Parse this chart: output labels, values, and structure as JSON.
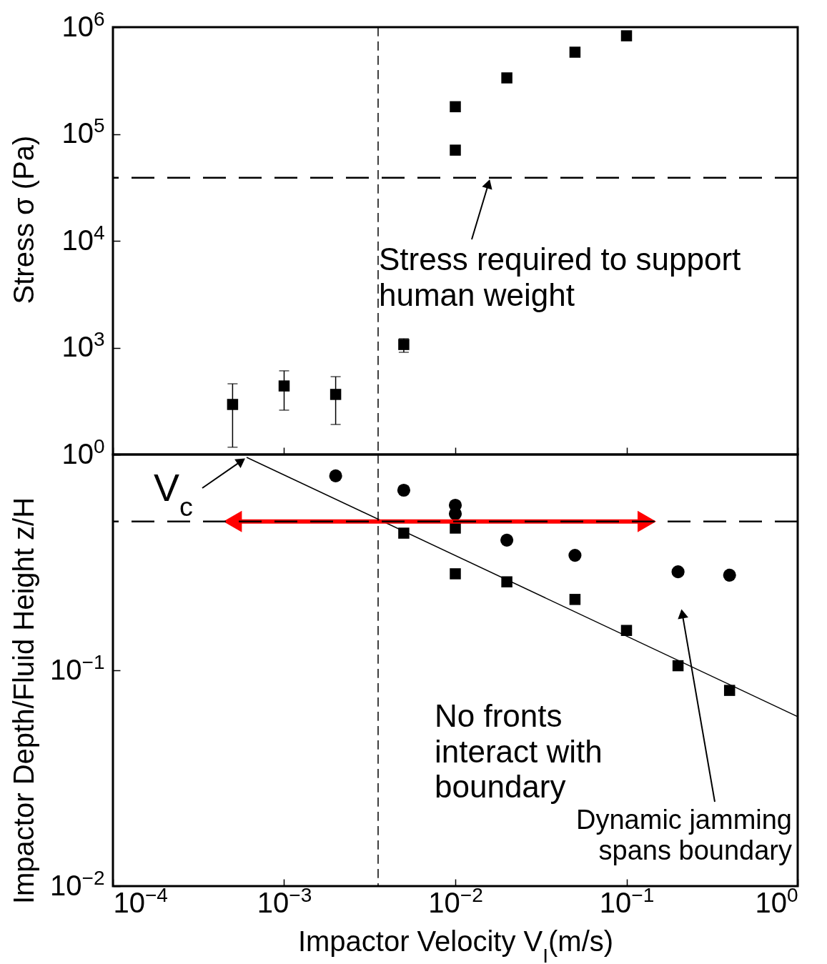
{
  "chart_data": [
    {
      "type": "scatter",
      "ylabel": "Stress σ (Pa)",
      "log": "xy",
      "xlim": [
        0.0001,
        1
      ],
      "ylim": [
        100,
        1000000
      ],
      "tick_labels": "y",
      "marker": "square",
      "grid": false,
      "xticks": [
        {
          "value": 0.0001,
          "label": null
        },
        {
          "value": 0.001,
          "label": null
        },
        {
          "value": 0.01,
          "label": null
        },
        {
          "value": 0.1,
          "label": null
        },
        {
          "value": 1,
          "label": null
        }
      ],
      "yticks": [
        {
          "value": 100,
          "label": null
        },
        {
          "value": 1000,
          "label": "10$^{3}$"
        },
        {
          "value": 10000,
          "label": "10$^{4}$"
        },
        {
          "value": 100000,
          "label": "10$^{5}$"
        },
        {
          "value": 1000000,
          "label": "10$^{6}$"
        }
      ],
      "series": [
        {
          "color": "#000000",
          "x": [
            0.0005,
            0.001,
            0.002,
            0.005,
            0.01,
            0.01,
            0.02,
            0.05,
            0.1
          ],
          "values": [
            294,
            438,
            365,
            1070,
            180000,
            70600,
            335000,
            583000,
            830000
          ],
          "errors": [
            [
              117,
              459
            ],
            [
              260,
              607
            ],
            [
              191,
              535
            ],
            [
              905,
              1213
            ],
            null,
            null,
            null,
            null,
            null
          ]
        }
      ],
      "ref_lines": [
        {
          "axis": "x",
          "value": 0.00354,
          "line_style": "dashed"
        },
        {
          "axis": "y",
          "value": 39000,
          "line_style": "dashed"
        }
      ],
      "annotations": [
        {
          "text": "Stress required to support\nhuman weight",
          "x": 0.016,
          "y": 39000
        }
      ]
    },
    {
      "type": "scatter",
      "xlabel": "Impactor Velocity V$_{I}$(m/s)",
      "ylabel": "Impactor Depth/Fluid Height  z/H",
      "log": "xy",
      "xlim": [
        0.0001,
        1
      ],
      "ylim": [
        0.01,
        1
      ],
      "grid": false,
      "xticks": [
        {
          "value": 0.0001,
          "label": "10$^{−4}$"
        },
        {
          "value": 0.001,
          "label": "10$^{−3}$"
        },
        {
          "value": 0.01,
          "label": "10$^{−2}$"
        },
        {
          "value": 0.1,
          "label": "10$^{−1}$"
        },
        {
          "value": 1,
          "label": "10$^{0}$"
        }
      ],
      "yticks": [
        {
          "value": 0.01,
          "label": "10$^{−2}$"
        },
        {
          "value": 0.1,
          "label": "10$^{−1}$"
        },
        {
          "value": 1,
          "label": "10$^{0}$"
        }
      ],
      "series": [
        {
          "color": "#000000",
          "marker": "circle",
          "x": [
            0.002,
            0.005,
            0.01,
            0.01,
            0.02,
            0.05,
            0.2,
            0.4
          ],
          "values": [
            0.796,
            0.683,
            0.582,
            0.531,
            0.401,
            0.341,
            0.286,
            0.276
          ]
        },
        {
          "color": "#000000",
          "marker": "square",
          "x": [
            0.005,
            0.01,
            0.01,
            0.02,
            0.05,
            0.1,
            0.2,
            0.4
          ],
          "values": [
            0.432,
            0.456,
            0.28,
            0.257,
            0.213,
            0.153,
            0.105,
            0.0807
          ]
        },
        {
          "type": "line",
          "color": "#000000",
          "marker": "none",
          "x": [
            0.000604,
            1
          ],
          "values": [
            0.97,
            0.061
          ]
        },
        {
          "type": "line",
          "color": "#ff0000",
          "marker": "triangle",
          "x": [
            0.0005,
            0.1315
          ],
          "values": [
            0.489,
            0.489
          ]
        }
      ],
      "ref_lines": [
        {
          "axis": "x",
          "value": 0.00354,
          "line_style": "dashed"
        },
        {
          "axis": "y",
          "value": 0.489,
          "line_style": "dashed"
        }
      ],
      "annotations": [
        {
          "text": "V$_{c}$",
          "x": 0.000604,
          "y": 0.97
        },
        "No fronts\ninteract with\nboundary",
        "Dynamic jamming\nspans boundary"
      ]
    }
  ]
}
